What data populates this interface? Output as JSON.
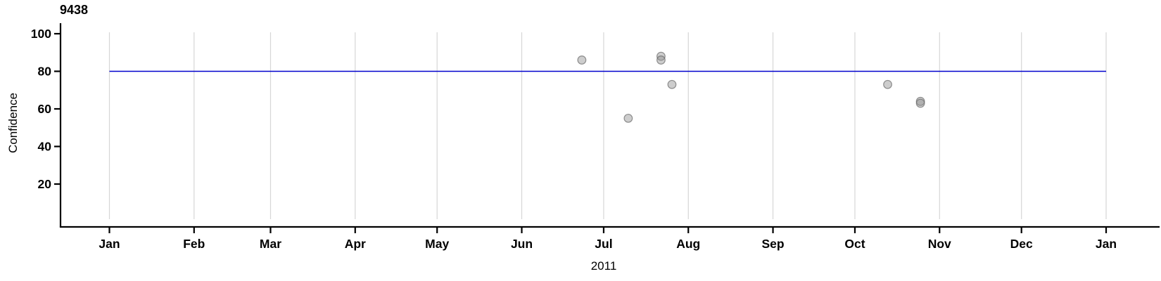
{
  "chart_data": {
    "type": "scatter",
    "title": "9438",
    "xlabel": "2011",
    "ylabel": "Confidence",
    "x_tick_labels": [
      "Jan",
      "Feb",
      "Mar",
      "Apr",
      "May",
      "Jun",
      "Jul",
      "Aug",
      "Sep",
      "Oct",
      "Nov",
      "Dec",
      "Jan"
    ],
    "y_ticks": [
      20,
      40,
      60,
      80,
      100
    ],
    "ylim": [
      0,
      105
    ],
    "x_range_days": 365,
    "grid": "vertical-month-gridlines-only",
    "legend": "none",
    "ref_line": {
      "value": 80
    },
    "points": [
      {
        "date": "2011-06-23",
        "value": 86
      },
      {
        "date": "2011-07-22",
        "value": 88
      },
      {
        "date": "2011-07-22",
        "value": 86
      },
      {
        "date": "2011-07-26",
        "value": 73
      },
      {
        "date": "2011-07-10",
        "value": 55
      },
      {
        "date": "2011-10-13",
        "value": 73
      },
      {
        "date": "2011-10-25",
        "value": 64
      },
      {
        "date": "2011-10-25",
        "value": 63
      }
    ],
    "colors": {
      "ref_line": "#0000cd",
      "point_fill": "rgba(145,145,145,0.45)",
      "point_stroke": "rgba(95,95,95,0.65)",
      "gridline": "#d6d6d6",
      "axis": "#000000",
      "text": "#000000"
    }
  }
}
